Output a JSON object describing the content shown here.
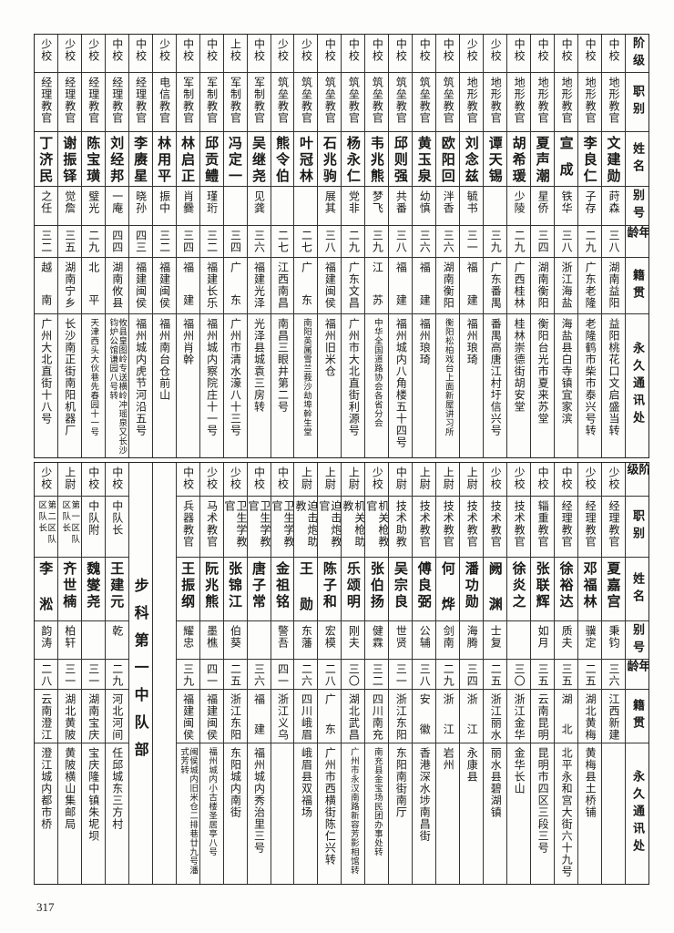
{
  "headers": [
    "阶级",
    "职别",
    "姓名",
    "别号",
    "年龄",
    "籍贯",
    "永久通讯处"
  ],
  "top_table": {
    "rows": [
      {
        "rank": "中校",
        "post": "地形教官",
        "name": "文建勋",
        "alias": "莳森",
        "age": "三八",
        "native": "湖南益阳",
        "address": "益阳桃花口文启盛当转"
      },
      {
        "rank": "中校",
        "post": "地形教官",
        "name": "李良仁",
        "alias": "子存",
        "age": "二九",
        "native": "广东老隆",
        "address": "老隆鹤市柴市泰兴号转"
      },
      {
        "rank": "中校",
        "post": "地形教官",
        "name": "宣成",
        "alias": "铁华",
        "age": "三八",
        "native": "浙江海盐",
        "address": "海盐县白寺镇宜家滨"
      },
      {
        "rank": "中校",
        "post": "地形教官",
        "name": "夏声潮",
        "alias": "星侨",
        "age": "三四",
        "native": "湖南衡阳",
        "address": "衡阳台光市夏来苏堂"
      },
      {
        "rank": "中校",
        "post": "地形教官",
        "name": "胡希瑗",
        "alias": "少陵",
        "age": "二九",
        "native": "广西桂林",
        "address": "桂林崇德街胡安堂"
      },
      {
        "rank": "少校",
        "post": "地形教官",
        "name": "谭天锡",
        "alias": "",
        "age": "三九",
        "native": "广东番禺",
        "address": "番禺高唐江村圩信兴号"
      },
      {
        "rank": "少校",
        "post": "地形教官",
        "name": "刘念兹",
        "alias": "毓书",
        "age": "三一",
        "native": "福建",
        "address": "福州琅琦"
      },
      {
        "rank": "中校",
        "post": "筑垒教官",
        "name": "欧阳回",
        "alias": "泮香",
        "age": "三六",
        "native": "湖南衡阳",
        "address": "衡阳松柏戏台上面新屋讲习所"
      },
      {
        "rank": "中校",
        "post": "筑垒教官",
        "name": "黄玉泉",
        "alias": "幼慎",
        "age": "三六",
        "native": "福建",
        "address": "福州琅琦"
      },
      {
        "rank": "中校",
        "post": "筑垒教官",
        "name": "邱则强",
        "alias": "共番",
        "age": "三八",
        "native": "福建",
        "address": "福州城内八角楼五十四号"
      },
      {
        "rank": "中校",
        "post": "筑垒教官",
        "name": "韦兆熊",
        "alias": "梦飞",
        "age": "三九",
        "native": "江苏",
        "address": "中华全国道路协会各省分会"
      },
      {
        "rank": "中校",
        "post": "筑垒教官",
        "name": "杨永仁",
        "alias": "党非",
        "age": "二九",
        "native": "广东文昌",
        "address": "广州市大北直街利源号"
      },
      {
        "rank": "中校",
        "post": "筑垒教官",
        "name": "石兆驹",
        "alias": "展其",
        "age": "三八",
        "native": "福建闽侯",
        "address": "福州旧米仓"
      },
      {
        "rank": "少校",
        "post": "筑垒教官",
        "name": "叶冠林",
        "alias": "",
        "age": "二七",
        "native": "广东",
        "address": "南阳英属雪兰莪沙劫埠幹生堂"
      },
      {
        "rank": "少校",
        "post": "筑垒教官",
        "name": "熊令伯",
        "alias": "",
        "age": "二七",
        "native": "江西南昌",
        "address": "南昌三眼井第二号"
      },
      {
        "rank": "中校",
        "post": "军制教官",
        "name": "吴继尧",
        "alias": "见龚",
        "age": "三六",
        "native": "福建光泽",
        "address": "光泽县城袁三房转"
      },
      {
        "rank": "上校",
        "post": "军制教官",
        "name": "冯定一",
        "alias": "",
        "age": "三四",
        "native": "广东",
        "address": "广州市清水濠八十三号"
      },
      {
        "rank": "中校",
        "post": "军制教官",
        "name": "邱贡鳢",
        "alias": "瑾珩",
        "age": "三二",
        "native": "福建长乐",
        "address": "福州城内察院庄十一号"
      },
      {
        "rank": "中校",
        "post": "军制教官",
        "name": "林启正",
        "alias": "肖爨",
        "age": "三四",
        "native": "福建",
        "address": "福州肖幹"
      },
      {
        "rank": "少校",
        "post": "电信教官",
        "name": "林用平",
        "alias": "振中",
        "age": "三二",
        "native": "福建闽侯",
        "address": "福州南台仓前山"
      },
      {
        "rank": "中校",
        "post": "经理教官",
        "name": "李赓星",
        "alias": "晓孙",
        "age": "四三",
        "native": "福建闽侯",
        "address": "福州城内虎节河沿五号"
      },
      {
        "rank": "中校",
        "post": "经理教官",
        "name": "刘经邦",
        "alias": "一庵",
        "age": "四四",
        "native": "湖南攸县",
        "address": "攸县皇图岭专送横岭冲瑶泉又长沙钧炉公馆谦园八号转"
      },
      {
        "rank": "少校",
        "post": "经理教官",
        "name": "陈宝璜",
        "alias": "璧光",
        "age": "二九",
        "native": "北平",
        "address": "天津西头大伙巷先春园十一号"
      },
      {
        "rank": "少校",
        "post": "经理教官",
        "name": "谢振铎",
        "alias": "觉詹",
        "age": "三五",
        "native": "湖南宁乡",
        "address": "长沙南正街南阳机器厂"
      },
      {
        "rank": "少校",
        "post": "经理教官",
        "name": "丁济民",
        "alias": "之任",
        "age": "三二",
        "native": "越南",
        "address": "广州大北直街十八号"
      }
    ]
  },
  "bottom_table": {
    "rows": [
      {
        "rank": "少校",
        "post": "经理教官",
        "name": "夏嘉宫",
        "alias": "秉钧",
        "age": "三六",
        "native": "江西新建",
        "address": ""
      },
      {
        "rank": "少校",
        "post": "经理教官",
        "name": "邓福林",
        "alias": "骥定",
        "age": "二五",
        "native": "湖北黄梅",
        "address": "黄梅县土桥铺"
      },
      {
        "rank": "中校",
        "post": "经理教官",
        "name": "徐裕达",
        "alias": "质夫",
        "age": "三五",
        "native": "湖北",
        "address": "北平永和宫大街六十九号"
      },
      {
        "rank": "中校",
        "post": "辎重教官",
        "name": "张联辉",
        "alias": "如月",
        "age": "三五",
        "native": "云南昆明",
        "address": "昆明市四区三段三号"
      },
      {
        "rank": "少校",
        "post": "技术教官",
        "name": "徐炎之",
        "alias": "",
        "age": "三〇",
        "native": "浙江金华",
        "address": "金华长山"
      },
      {
        "rank": "少校",
        "post": "技术教官",
        "name": "阙渊",
        "alias": "士复",
        "age": "二五",
        "native": "浙江丽水",
        "address": "丽水县碧湖镇"
      },
      {
        "rank": "上尉",
        "post": "技术教官",
        "name": "潘功勋",
        "alias": "海腾",
        "age": "三四",
        "native": "浙江",
        "address": "永康县"
      },
      {
        "rank": "上尉",
        "post": "技术教官",
        "name": "何烨",
        "alias": "剑南",
        "age": "二九",
        "native": "浙江",
        "address": "岩州"
      },
      {
        "rank": "上尉",
        "post": "技术教官",
        "name": "傅良弼",
        "alias": "公辅",
        "age": "三八",
        "native": "安徽",
        "address": "香港深水埗南昌街"
      },
      {
        "rank": "中尉",
        "post": "技术助教",
        "name": "吴宗良",
        "alias": "世贤",
        "age": "三一",
        "native": "浙江东阳",
        "address": "东阳南街南厅"
      },
      {
        "rank": "少校",
        "post": "机关枪教官",
        "name": "张伯扬",
        "alias": "健霖",
        "age": "三二",
        "native": "四川南充",
        "address": "南充县金宝场民团办事处转"
      },
      {
        "rank": "上尉",
        "post": "机关枪助教",
        "name": "乐颂明",
        "alias": "刚夫",
        "age": "三〇",
        "native": "湖北武昌",
        "address": "广州市永汉南路新容芳影相馆转"
      },
      {
        "rank": "上尉",
        "post": "迫击炮教官",
        "name": "陈子和",
        "alias": "宏模",
        "age": "二八",
        "native": "广东",
        "address": "广州市西横街陈仁兴转"
      },
      {
        "rank": "上尉",
        "post": "迫击炮助教",
        "name": "王勋",
        "alias": "东藩",
        "age": "二六",
        "native": "四川峨眉",
        "address": "峨眉县双福场"
      },
      {
        "rank": "中校",
        "post": "卫生学教官",
        "name": "金祖铭",
        "alias": "警吾",
        "age": "四一",
        "native": "浙江义乌",
        "address": ""
      },
      {
        "rank": "中校",
        "post": "卫生学教官",
        "name": "唐子常",
        "alias": "",
        "age": "三六",
        "native": "福建",
        "address": "福州城内秀治里三号"
      },
      {
        "rank": "少校",
        "post": "卫生学教官",
        "name": "张锦江",
        "alias": "伯葵",
        "age": "二五",
        "native": "浙江东阳",
        "address": "东阳城内南街"
      },
      {
        "rank": "少校",
        "post": "马术教官",
        "name": "阮兆熊",
        "alias": "墨樵",
        "age": "四一",
        "native": "福建闽侯",
        "address": "福州城内小古楼圣居亭八号"
      },
      {
        "rank": "中校",
        "post": "兵器教官",
        "name": "王振纲",
        "alias": "耀忠",
        "age": "三九",
        "native": "福建闽侯",
        "address": "闽侯城内旧米仓二排巷廿九号潘式芳转"
      }
    ],
    "section_title": "步科第一中队部",
    "section_rows": [
      {
        "rank": "中校",
        "post": "中队长",
        "name": "王建元",
        "alias": "乾",
        "age": "二九",
        "native": "河北河间",
        "address": "任邱城东三方村"
      },
      {
        "rank": "中校",
        "post": "中队附",
        "name": "魏燮尧",
        "alias": "",
        "age": "三一",
        "native": "湖南宝庆",
        "address": "宝庆隆中镇朱坭坝"
      },
      {
        "rank": "上尉",
        "post": "第一区队区队长",
        "name": "齐世楠",
        "alias": "柏轩",
        "age": "三一",
        "native": "湖北黄陂",
        "address": "黄陂横山集邮局"
      },
      {
        "rank": "少校",
        "post": "第二区队区队长",
        "name": "李淞",
        "alias": "韵涛",
        "age": "二八",
        "native": "云南澄江",
        "address": "澄江城内都市桥"
      }
    ]
  },
  "page_number": "317"
}
